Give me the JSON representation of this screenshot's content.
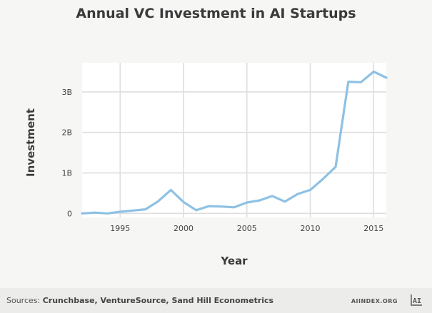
{
  "chart_data": {
    "type": "line",
    "title": "Annual VC Investment in AI Startups",
    "xlabel": "Year",
    "ylabel": "Investment",
    "xlim": [
      1992,
      2016
    ],
    "ylim": [
      -0.1,
      3.72
    ],
    "x_ticks": [
      1995,
      2000,
      2005,
      2010,
      2015
    ],
    "x_tick_labels": [
      "1995",
      "2000",
      "2005",
      "2010",
      "2015"
    ],
    "y_ticks": [
      0,
      1,
      2,
      3
    ],
    "y_tick_labels": [
      "0",
      "1B",
      "2B",
      "3B"
    ],
    "grid": true,
    "series": [
      {
        "name": "",
        "color": "#8ec1e4",
        "x": [
          1992,
          1993,
          1994,
          1995,
          1996,
          1997,
          1998,
          1999,
          2000,
          2001,
          2002,
          2003,
          2004,
          2005,
          2006,
          2007,
          2008,
          2009,
          2010,
          2011,
          2012,
          2013,
          2014,
          2015,
          2016
        ],
        "y": [
          0.0,
          0.02,
          0.0,
          0.04,
          0.07,
          0.1,
          0.3,
          0.58,
          0.28,
          0.08,
          0.18,
          0.17,
          0.15,
          0.27,
          0.32,
          0.43,
          0.29,
          0.48,
          0.58,
          0.85,
          1.15,
          3.25,
          3.24,
          3.5,
          3.35
        ]
      }
    ]
  },
  "footer": {
    "source_prefix": "Sources: ",
    "source_names": "Crunchbase, VentureSource, Sand Hill Econometrics",
    "brand": "AIINDEX.ORG",
    "logo_text": "AI"
  },
  "colors": {
    "line": "#8ec1e4",
    "plot_background": "#ffffff",
    "grid": "#dedede",
    "page_background": "#f6f6f5",
    "footer_background": "#ececeb"
  }
}
